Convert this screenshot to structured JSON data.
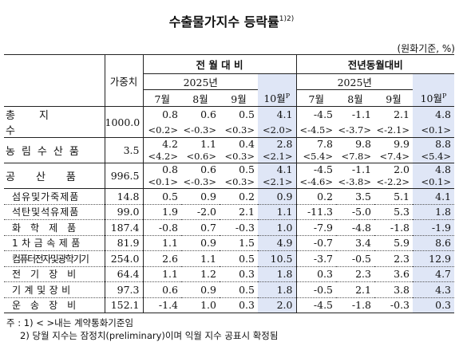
{
  "title": "수출물가지수 등락률",
  "title_note": "1)2)",
  "unit": "(원화기준, %)",
  "headers": {
    "weight": "가중치",
    "group_mom": "전 월 대 비",
    "group_yoy": "전년동월대비",
    "year": "2025년",
    "months": [
      "7월",
      "8월",
      "9월",
      "10월"
    ],
    "prelim_mark": "P"
  },
  "rows": [
    {
      "label": "총지수",
      "weight": "1000.0",
      "mom": [
        "0.8",
        "0.6",
        "0.5",
        "4.1"
      ],
      "mom_paren": [
        "<0.2>",
        "<-0.3>",
        "<0.3>",
        "<2.0>"
      ],
      "yoy": [
        "-4.5",
        "-1.1",
        "2.1",
        "4.8"
      ],
      "yoy_paren": [
        "<-4.5>",
        "<-3.7>",
        "<-2.1>",
        "<0.1>"
      ]
    },
    {
      "label": "농림수산품",
      "weight": "3.5",
      "mom": [
        "4.2",
        "1.1",
        "0.4",
        "2.8"
      ],
      "mom_paren": [
        "<4.2>",
        "<0.6>",
        "<0.3>",
        "<2.1>"
      ],
      "yoy": [
        "7.8",
        "9.8",
        "9.9",
        "8.8"
      ],
      "yoy_paren": [
        "<5.4>",
        "<7.8>",
        "<7.4>",
        "<5.4>"
      ]
    },
    {
      "label": "공산품",
      "weight": "996.5",
      "mom": [
        "0.8",
        "0.6",
        "0.5",
        "4.1"
      ],
      "mom_paren": [
        "<0.1>",
        "<-0.3>",
        "<0.3>",
        "<2.1>"
      ],
      "yoy": [
        "-4.5",
        "-1.1",
        "2.0",
        "4.8"
      ],
      "yoy_paren": [
        "<-4.6>",
        "<-3.8>",
        "<-2.2>",
        "<0.1>"
      ]
    }
  ],
  "subrows": [
    {
      "label": "섬유및가죽제품",
      "weight": "14.8",
      "mom": [
        "0.5",
        "0.9",
        "0.2",
        "0.9"
      ],
      "yoy": [
        "0.2",
        "3.5",
        "5.1",
        "4.1"
      ]
    },
    {
      "label": "석탄및석유제품",
      "weight": "99.0",
      "mom": [
        "1.9",
        "-2.0",
        "2.1",
        "1.1"
      ],
      "yoy": [
        "-11.3",
        "-5.0",
        "5.3",
        "1.8"
      ]
    },
    {
      "label": "화학제품",
      "weight": "187.4",
      "mom": [
        "-0.8",
        "0.7",
        "-0.3",
        "1.0"
      ],
      "yoy": [
        "-7.9",
        "-4.8",
        "-1.8",
        "-1.9"
      ]
    },
    {
      "label": "1차금속제품",
      "weight": "81.9",
      "mom": [
        "1.1",
        "0.9",
        "1.5",
        "4.9"
      ],
      "yoy": [
        "-0.7",
        "3.4",
        "5.9",
        "8.6"
      ]
    },
    {
      "label": "컴퓨터전자및광학기기",
      "weight": "254.0",
      "mom": [
        "2.6",
        "1.1",
        "0.5",
        "10.5"
      ],
      "yoy": [
        "-3.7",
        "-0.5",
        "2.3",
        "12.9"
      ]
    },
    {
      "label": "전기장비",
      "weight": "64.4",
      "mom": [
        "1.1",
        "1.2",
        "0.3",
        "1.8"
      ],
      "yoy": [
        "0.3",
        "2.3",
        "3.6",
        "4.7"
      ]
    },
    {
      "label": "기계및장비",
      "weight": "97.3",
      "mom": [
        "0.6",
        "0.9",
        "0.5",
        "1.8"
      ],
      "yoy": [
        "-0.5",
        "2.1",
        "3.8",
        "4.3"
      ]
    },
    {
      "label": "운송장비",
      "weight": "152.1",
      "mom": [
        "-1.4",
        "1.0",
        "0.3",
        "2.0"
      ],
      "yoy": [
        "-4.5",
        "-1.8",
        "-0.3",
        "0.3"
      ]
    }
  ],
  "notes": {
    "prefix": "주 :",
    "n1": " 1) < >내는 계약통화기준임",
    "n2": "2) 당월 지수는 잠정치(preliminary)이며 익월 지수 공표시 확정됨"
  }
}
